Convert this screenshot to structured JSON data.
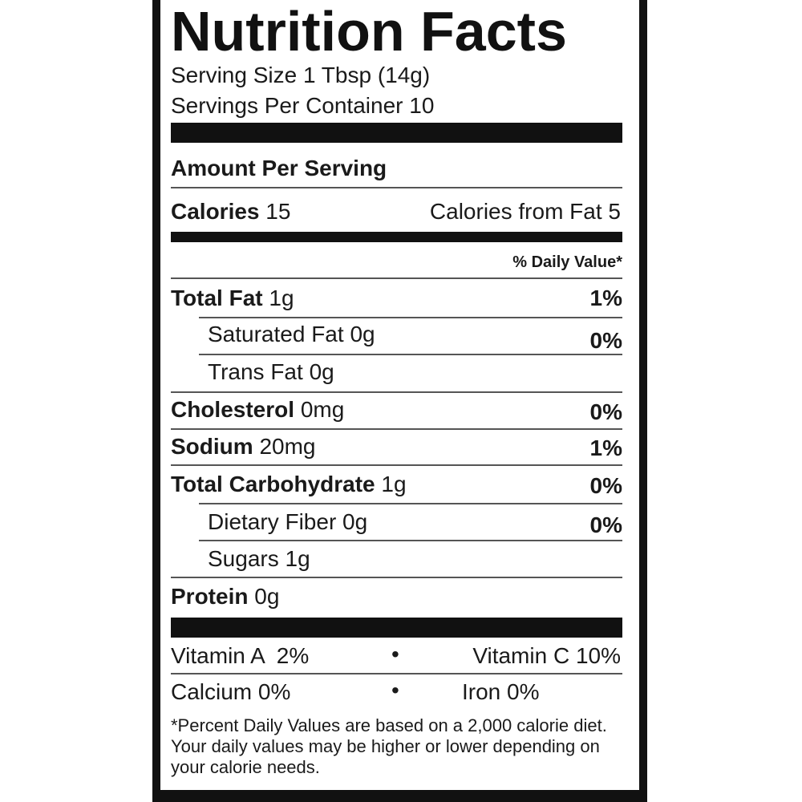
{
  "title": "Nutrition Facts",
  "serving_size": "Serving Size 1 Tbsp (14g)",
  "servings_per_container": "Servings Per Container 10",
  "amount_per_serving": "Amount Per Serving",
  "calories": {
    "label": "Calories",
    "value": "15",
    "from_fat": "Calories from Fat 5"
  },
  "daily_value_header": "% Daily Value*",
  "nutrients": [
    {
      "label": "Total Fat",
      "amount": "1g",
      "dv": "1%"
    },
    {
      "label": "Saturated Fat",
      "amount": "0g",
      "dv": "0%"
    },
    {
      "label": "Trans Fat",
      "amount": "0g",
      "dv": ""
    },
    {
      "label": "Cholesterol",
      "amount": "0mg",
      "dv": "0%"
    },
    {
      "label": "Sodium",
      "amount": "20mg",
      "dv": "1%"
    },
    {
      "label": "Total Carbohydrate",
      "amount": "1g",
      "dv": "0%"
    },
    {
      "label": "Dietary Fiber",
      "amount": "0g",
      "dv": "0%"
    },
    {
      "label": "Sugars",
      "amount": "1g",
      "dv": ""
    },
    {
      "label": "Protein",
      "amount": "0g",
      "dv": ""
    }
  ],
  "vitamins": {
    "vitamin_a": "Vitamin A  2%",
    "vitamin_c": "Vitamin C 10%",
    "calcium": "Calcium 0%",
    "iron": "Iron 0%",
    "bullet": "•"
  },
  "footnote": "*Percent Daily Values are based on a 2,000 calorie diet. Your daily values may be higher or lower depending on your calorie needs."
}
